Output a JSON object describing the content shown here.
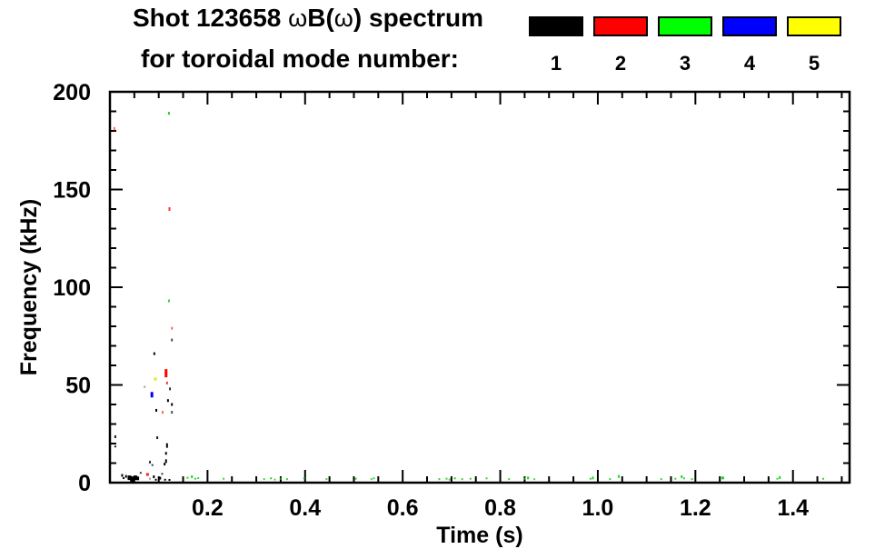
{
  "chart_data": {
    "type": "scatter",
    "title": "Shot 123658 ωB(ω) spectrum",
    "title_parts": [
      {
        "text": "Shot 123658 ",
        "bold": true
      },
      {
        "text": "ω",
        "bold": false
      },
      {
        "text": "B(",
        "bold": true
      },
      {
        "text": "ω",
        "bold": false
      },
      {
        "text": ") spectrum",
        "bold": true
      }
    ],
    "subtitle": "for toroidal mode number:",
    "xlabel": "Time (s)",
    "ylabel": "Frequency (kHz)",
    "xlim": [
      0,
      1.516
    ],
    "ylim": [
      0,
      200
    ],
    "grid": false,
    "legend_position": "top-right",
    "x_ticks": {
      "major": [
        0.2,
        0.4,
        0.6,
        0.8,
        1.0,
        1.2,
        1.4
      ],
      "labels": [
        "0.2",
        "0.4",
        "0.6",
        "0.8",
        "1.0",
        "1.2",
        "1.4"
      ],
      "minor_step": 0.05
    },
    "y_ticks": {
      "major": [
        0,
        50,
        100,
        150,
        200
      ],
      "labels": [
        "0",
        "50",
        "100",
        "150",
        "200"
      ],
      "minor_step": 10
    },
    "series": [
      {
        "name": "1",
        "color": "#000000",
        "points": [
          [
            0.011,
            23.5,
            2,
            3,
            0.9
          ],
          [
            0.011,
            18.5,
            2,
            2,
            0.9
          ],
          [
            0.025,
            3.7,
            2,
            3,
            1
          ],
          [
            0.028,
            2.3,
            2,
            2,
            1
          ],
          [
            0.033,
            3.2,
            2,
            3,
            1
          ],
          [
            0.04,
            2.5,
            4,
            5,
            1
          ],
          [
            0.046,
            1.8,
            5,
            6,
            1
          ],
          [
            0.052,
            2.5,
            4,
            5,
            1
          ],
          [
            0.057,
            2.2,
            3,
            4,
            1
          ],
          [
            0.063,
            5.0,
            2,
            2,
            0.8
          ],
          [
            0.071,
            49,
            2,
            2,
            0.4
          ],
          [
            0.082,
            2.0,
            2,
            2,
            0.4
          ],
          [
            0.082,
            10.5,
            2,
            3,
            0.8
          ],
          [
            0.087,
            9.0,
            2,
            2,
            0.8
          ],
          [
            0.09,
            3.0,
            2,
            3,
            1
          ],
          [
            0.091,
            66,
            2,
            3,
            1
          ],
          [
            0.094,
            1.5,
            2,
            2,
            1
          ],
          [
            0.095,
            37,
            2,
            3,
            1
          ],
          [
            0.097,
            23,
            2,
            3,
            0.9
          ],
          [
            0.103,
            2.3,
            2,
            3,
            1
          ],
          [
            0.107,
            4.5,
            2,
            2,
            0.8
          ],
          [
            0.112,
            9.5,
            2,
            3,
            1
          ],
          [
            0.113,
            1.5,
            2,
            2,
            1
          ],
          [
            0.115,
            15,
            2,
            3,
            1
          ],
          [
            0.115,
            11,
            2,
            4,
            1
          ],
          [
            0.117,
            19,
            2,
            5,
            1
          ],
          [
            0.119,
            42,
            2,
            3,
            1
          ],
          [
            0.122,
            1.4,
            2,
            2,
            1
          ],
          [
            0.123,
            48,
            2,
            3,
            0.8
          ],
          [
            0.127,
            73,
            2,
            3,
            0.7
          ],
          [
            0.127,
            40,
            2,
            3,
            1
          ],
          [
            0.127,
            36,
            2,
            3,
            0.7
          ]
        ]
      },
      {
        "name": "2",
        "color": "#ff0000",
        "points": [
          [
            0.009,
            181,
            2,
            4,
            0.6
          ],
          [
            0.077,
            4.2,
            3,
            3,
            0.9
          ],
          [
            0.108,
            36,
            2,
            3,
            0.6
          ],
          [
            0.115,
            56,
            3,
            9,
            1
          ],
          [
            0.117,
            51,
            2,
            3,
            0.8
          ],
          [
            0.122,
            140,
            2,
            4,
            0.8
          ],
          [
            0.127,
            79,
            2,
            3,
            0.6
          ]
        ]
      },
      {
        "name": "3",
        "color": "#00cc00",
        "points": [
          [
            0.121,
            189,
            2,
            3,
            0.9
          ],
          [
            0.121,
            93,
            2,
            3,
            0.8
          ],
          [
            0.159,
            2.5,
            2,
            2,
            0.9
          ],
          [
            0.168,
            3.0,
            2,
            3,
            0.9
          ],
          [
            0.175,
            2.0,
            2,
            2,
            0.8
          ],
          [
            0.181,
            2.3,
            2,
            2,
            0.8
          ],
          [
            0.233,
            2.0,
            2,
            2,
            0.8
          ],
          [
            0.316,
            1.8,
            2,
            2,
            0.8
          ],
          [
            0.33,
            2.2,
            2,
            2,
            0.9
          ],
          [
            0.338,
            1.6,
            2,
            2,
            0.7
          ],
          [
            0.35,
            2.0,
            2,
            2,
            0.8
          ],
          [
            0.363,
            1.8,
            2,
            2,
            0.8
          ],
          [
            0.398,
            2.2,
            2,
            2,
            0.8
          ],
          [
            0.444,
            1.8,
            2,
            2,
            0.8
          ],
          [
            0.504,
            2.0,
            2,
            2,
            0.8
          ],
          [
            0.536,
            1.8,
            2,
            2,
            0.7
          ],
          [
            0.541,
            2.2,
            2,
            2,
            0.8
          ],
          [
            0.675,
            1.8,
            2,
            2,
            0.8
          ],
          [
            0.69,
            2.0,
            2,
            2,
            0.8
          ],
          [
            0.696,
            1.6,
            2,
            2,
            0.7
          ],
          [
            0.707,
            2.2,
            2,
            2,
            0.9
          ],
          [
            0.722,
            1.8,
            2,
            2,
            0.8
          ],
          [
            0.739,
            2.0,
            2,
            2,
            0.8
          ],
          [
            0.772,
            2.2,
            2,
            2,
            0.8
          ],
          [
            0.818,
            1.8,
            2,
            2,
            0.8
          ],
          [
            0.85,
            2.0,
            2,
            2,
            0.8
          ],
          [
            0.857,
            2.4,
            2,
            3,
            0.9
          ],
          [
            0.87,
            1.8,
            2,
            2,
            0.7
          ],
          [
            0.985,
            2.0,
            2,
            2,
            0.8
          ],
          [
            0.99,
            2.4,
            2,
            3,
            0.9
          ],
          [
            1.025,
            1.8,
            2,
            2,
            0.8
          ],
          [
            1.043,
            3.2,
            2,
            3,
            0.9
          ],
          [
            1.13,
            1.8,
            2,
            2,
            0.8
          ],
          [
            1.159,
            2.0,
            2,
            2,
            0.8
          ],
          [
            1.172,
            3.0,
            2,
            3,
            0.9
          ],
          [
            1.177,
            2.2,
            2,
            2,
            0.8
          ],
          [
            1.193,
            1.8,
            2,
            2,
            0.8
          ],
          [
            1.256,
            2.4,
            3,
            3,
            0.9
          ],
          [
            1.368,
            2.0,
            2,
            2,
            0.8
          ],
          [
            1.373,
            2.6,
            2,
            3,
            0.9
          ],
          [
            1.462,
            2.0,
            2,
            2,
            0.8
          ]
        ]
      },
      {
        "name": "4",
        "color": "#0000ff",
        "points": [
          [
            0.086,
            45,
            3,
            6,
            1
          ]
        ]
      },
      {
        "name": "5",
        "color": "#e8e800",
        "points": [
          [
            0.093,
            53,
            3,
            3,
            1
          ]
        ]
      }
    ],
    "legend_colors": [
      "#000000",
      "#ff0000",
      "#00ff00",
      "#0000ff",
      "#ffff00"
    ]
  }
}
